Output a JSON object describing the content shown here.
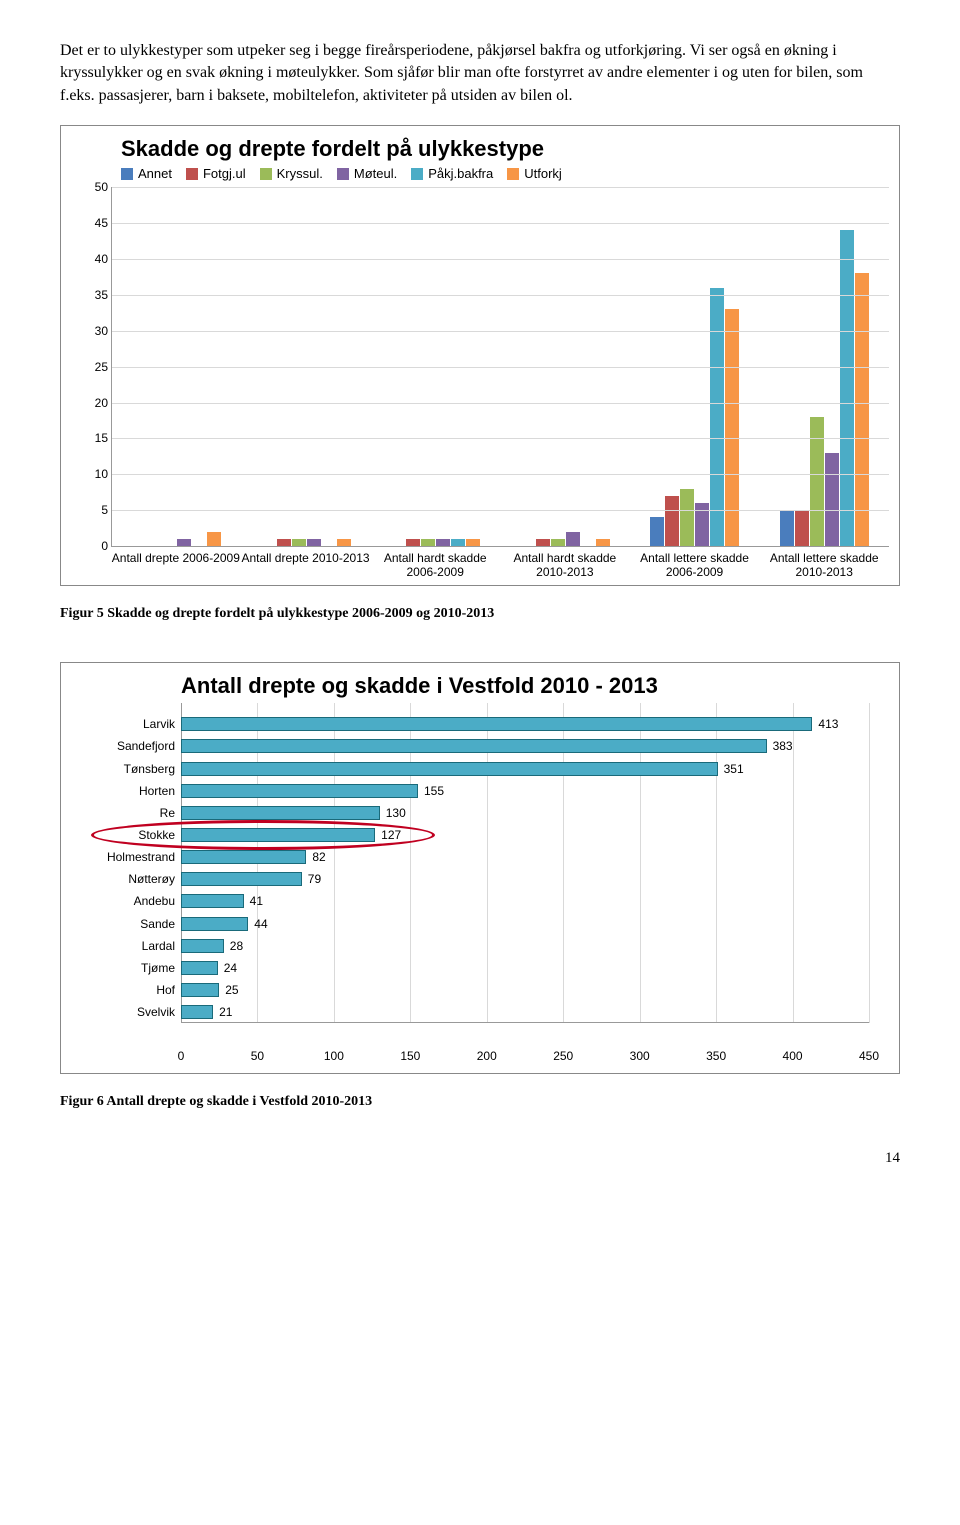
{
  "paragraph": "Det er to ulykkestyper som utpeker seg i begge fireårsperiodene, påkjørsel bakfra og utforkjøring. Vi ser også en økning i kryssulykker og en svak økning i møteulykker. Som sjåfør blir man ofte forstyrret av andre elementer i og uten for bilen, som f.eks. passasjerer, barn i baksete, mobiltelefon, aktiviteter på utsiden av bilen ol.",
  "chart1": {
    "title": "Skadde og drepte fordelt på ulykkestype",
    "legend": [
      {
        "label": "Annet",
        "color": "#4a7dbd"
      },
      {
        "label": "Fotgj.ul",
        "color": "#bf504d"
      },
      {
        "label": "Kryssul.",
        "color": "#9bbb59"
      },
      {
        "label": "Møteul.",
        "color": "#8064a2"
      },
      {
        "label": "Påkj.bakfra",
        "color": "#4bacc6"
      },
      {
        "label": "Utforkj",
        "color": "#f79646"
      }
    ],
    "ylim": [
      0,
      50
    ],
    "ytick_step": 5,
    "categories": [
      "Antall drepte 2006-2009",
      "Antall drepte 2010-2013",
      "Antall hardt skadde 2006-2009",
      "Antall hardt skadde 2010-2013",
      "Antall lettere skadde 2006-2009",
      "Antall lettere skadde 2010-2013"
    ],
    "series_by_group": [
      [
        0,
        0,
        0,
        1,
        0,
        2
      ],
      [
        0,
        1,
        1,
        1,
        0,
        1
      ],
      [
        0,
        1,
        1,
        1,
        1,
        1
      ],
      [
        0,
        1,
        1,
        2,
        0,
        1
      ],
      [
        4,
        7,
        8,
        6,
        36,
        33
      ],
      [
        5,
        5,
        18,
        13,
        44,
        38
      ]
    ]
  },
  "caption1": "Figur 5 Skadde og drepte fordelt på ulykkestype 2006-2009 og 2010-2013",
  "chart2": {
    "title": "Antall drepte og skadde i Vestfold 2010 - 2013",
    "bar_fill": "#4bacc6",
    "xlim": [
      0,
      450
    ],
    "xtick_step": 50,
    "rows": [
      {
        "label": "Larvik",
        "value": 413
      },
      {
        "label": "Sandefjord",
        "value": 383
      },
      {
        "label": "Tønsberg",
        "value": 351
      },
      {
        "label": "Horten",
        "value": 155
      },
      {
        "label": "Re",
        "value": 130
      },
      {
        "label": "Stokke",
        "value": 127
      },
      {
        "label": "Holmestrand",
        "value": 82
      },
      {
        "label": "Nøtterøy",
        "value": 79
      },
      {
        "label": "Andebu",
        "value": 41
      },
      {
        "label": "Sande",
        "value": 44
      },
      {
        "label": "Lardal",
        "value": 28
      },
      {
        "label": "Tjøme",
        "value": 24
      },
      {
        "label": "Hof",
        "value": 25
      },
      {
        "label": "Svelvik",
        "value": 21
      }
    ],
    "highlight_index": 5
  },
  "caption2": "Figur 6 Antall drepte og skadde i Vestfold 2010-2013",
  "page": "14"
}
